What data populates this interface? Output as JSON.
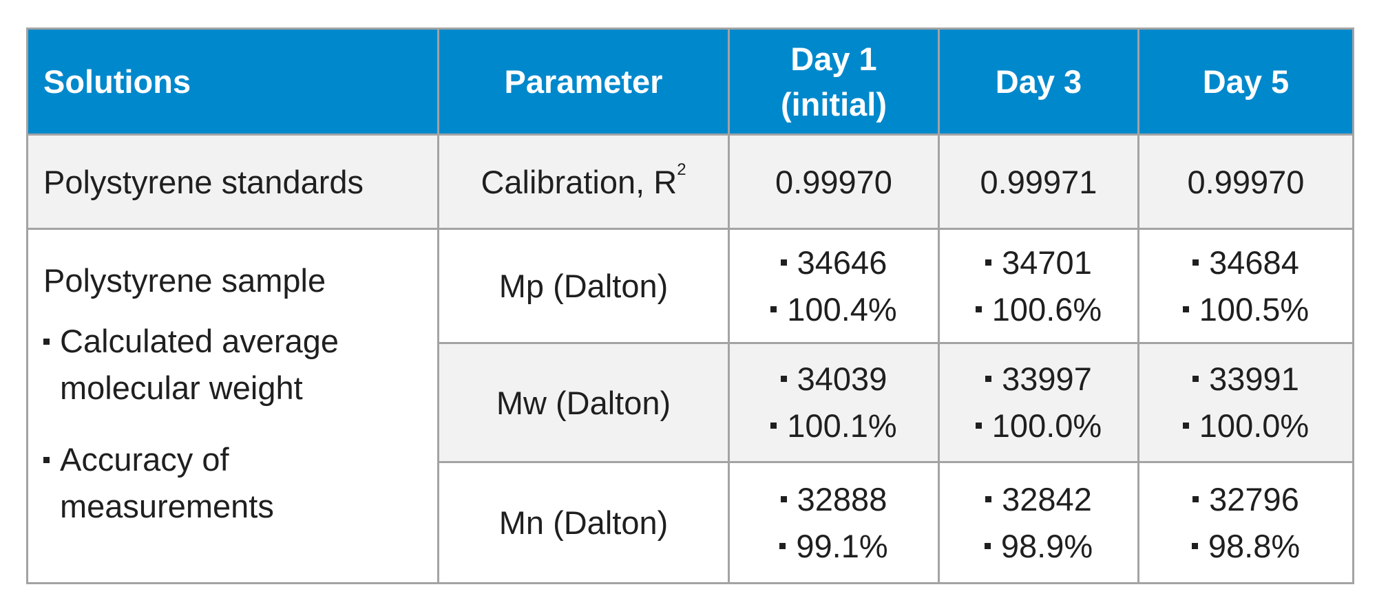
{
  "headers": {
    "solutions": "Solutions",
    "parameter": "Parameter",
    "day1_line1": "Day 1",
    "day1_line2": "(initial)",
    "day3": "Day 3",
    "day5": "Day 5"
  },
  "calibration": {
    "solution": "Polystyrene standards",
    "parameter": "Calibration, R",
    "superscript": "2",
    "day1": "0.99970",
    "day3": "0.99971",
    "day5": "0.99970"
  },
  "sample": {
    "title": "Polystyrene sample",
    "bullet1_line1": "Calculated average",
    "bullet1_line2": "molecular weight",
    "bullet2_line1": "Accuracy of",
    "bullet2_line2": "measurements"
  },
  "rows": [
    {
      "parameter": "Mp (Dalton)",
      "day1": {
        "value": "34646",
        "accuracy": "100.4%"
      },
      "day3": {
        "value": "34701",
        "accuracy": "100.6%"
      },
      "day5": {
        "value": "34684",
        "accuracy": "100.5%"
      }
    },
    {
      "parameter": "Mw (Dalton)",
      "day1": {
        "value": "34039",
        "accuracy": "100.1%"
      },
      "day3": {
        "value": "33997",
        "accuracy": "100.0%"
      },
      "day5": {
        "value": "33991",
        "accuracy": "100.0%"
      }
    },
    {
      "parameter": "Mn (Dalton)",
      "day1": {
        "value": "32888",
        "accuracy": "99.1%"
      },
      "day3": {
        "value": "32842",
        "accuracy": "98.9%"
      },
      "day5": {
        "value": "32796",
        "accuracy": "98.8%"
      }
    }
  ],
  "colors": {
    "header_bg": "#0088cc",
    "header_text": "#ffffff",
    "shaded_row": "#f2f2f3",
    "border": "#a3a3a3"
  }
}
